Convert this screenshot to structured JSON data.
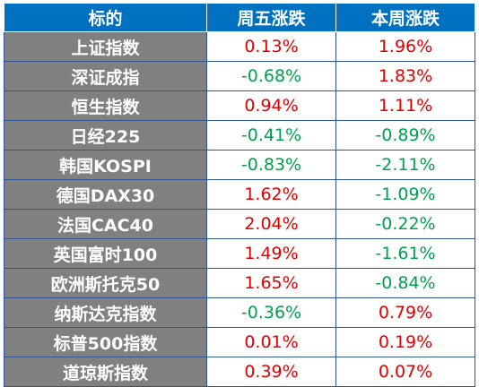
{
  "colors": {
    "header_bg": "#0070c0",
    "name_bg": "#808080",
    "up": "#e00000",
    "down": "#00a050",
    "border": "#2f5597"
  },
  "chart_data": {
    "type": "table",
    "columns": [
      "标的",
      "周五涨跌",
      "本周涨跌"
    ],
    "rows": [
      {
        "name": "上证指数",
        "fri": "0.13%",
        "week": "1.96%",
        "fri_v": 0.13,
        "week_v": 1.96
      },
      {
        "name": "深证成指",
        "fri": "-0.68%",
        "week": "1.83%",
        "fri_v": -0.68,
        "week_v": 1.83
      },
      {
        "name": "恒生指数",
        "fri": "0.94%",
        "week": "1.11%",
        "fri_v": 0.94,
        "week_v": 1.11
      },
      {
        "name": "日经225",
        "fri": "-0.41%",
        "week": "-0.89%",
        "fri_v": -0.41,
        "week_v": -0.89
      },
      {
        "name": "韩国KOSPI",
        "fri": "-0.83%",
        "week": "-2.11%",
        "fri_v": -0.83,
        "week_v": -2.11
      },
      {
        "name": "德国DAX30",
        "fri": "1.62%",
        "week": "-1.09%",
        "fri_v": 1.62,
        "week_v": -1.09
      },
      {
        "name": "法国CAC40",
        "fri": "2.04%",
        "week": "-0.22%",
        "fri_v": 2.04,
        "week_v": -0.22
      },
      {
        "name": "英国富时100",
        "fri": "1.49%",
        "week": "-1.61%",
        "fri_v": 1.49,
        "week_v": -1.61
      },
      {
        "name": "欧洲斯托克50",
        "fri": "1.65%",
        "week": "-0.84%",
        "fri_v": 1.65,
        "week_v": -0.84
      },
      {
        "name": "纳斯达克指数",
        "fri": "-0.36%",
        "week": "0.79%",
        "fri_v": -0.36,
        "week_v": 0.79
      },
      {
        "name": "标普500指数",
        "fri": "0.01%",
        "week": "0.19%",
        "fri_v": 0.01,
        "week_v": 0.19
      },
      {
        "name": "道琼斯指数",
        "fri": "0.39%",
        "week": "0.07%",
        "fri_v": 0.39,
        "week_v": 0.07
      }
    ]
  }
}
